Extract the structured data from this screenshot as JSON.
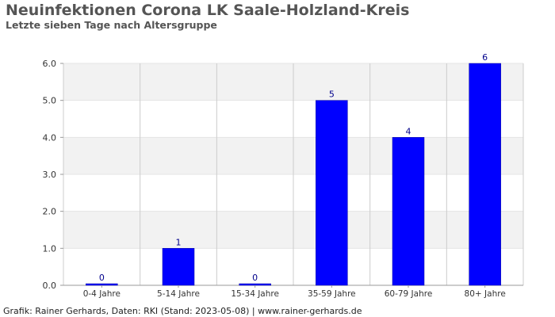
{
  "header": {
    "title": "Neuinfektionen Corona LK Saale-Holzland-Kreis",
    "subtitle": "Letzte sieben Tage nach Altersgruppe"
  },
  "footer": {
    "text": "Grafik: Rainer Gerhards, Daten: RKI (Stand: 2023-05-08) | www.rainer-gerhards.de"
  },
  "colors": {
    "bar": "#0000ff",
    "data_label": "#00008b",
    "band": "#f2f2f2",
    "grid": "#cccccc"
  },
  "chart_data": {
    "type": "bar",
    "title": "Neuinfektionen Corona LK Saale-Holzland-Kreis",
    "subtitle": "Letzte sieben Tage nach Altersgruppe",
    "categories": [
      "0-4 Jahre",
      "5-14 Jahre",
      "15-34 Jahre",
      "35-59 Jahre",
      "60-79 Jahre",
      "80+ Jahre"
    ],
    "values": [
      0,
      1,
      0,
      5,
      4,
      6
    ],
    "data_labels": [
      "0",
      "1",
      "0",
      "5",
      "4",
      "6"
    ],
    "ylim": [
      0,
      6
    ],
    "yticks": [
      "0.0",
      "1.0",
      "2.0",
      "3.0",
      "4.0",
      "5.0",
      "6.0"
    ],
    "xlabel": "",
    "ylabel": "",
    "grid": true,
    "legend": "none"
  }
}
